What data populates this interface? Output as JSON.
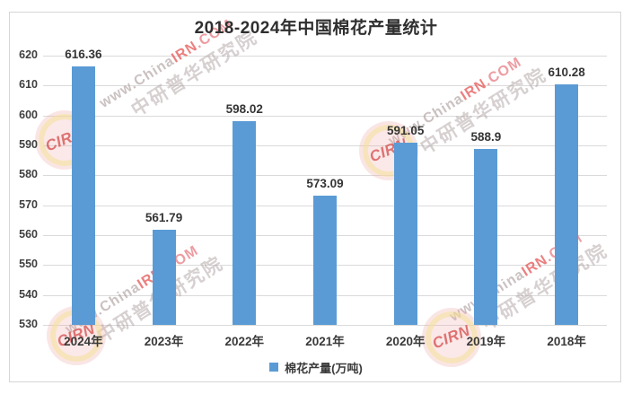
{
  "chart_data": {
    "type": "bar",
    "title": "2018-2024年中国棉花产量统计",
    "series_name": "棉花产量(万吨)",
    "categories": [
      "2024年",
      "2023年",
      "2022年",
      "2021年",
      "2020年",
      "2019年",
      "2018年"
    ],
    "values": [
      616.36,
      561.79,
      598.02,
      573.09,
      591.05,
      588.9,
      610.28
    ],
    "value_labels": [
      "616.36",
      "561.79",
      "598.02",
      "573.09",
      "591.05",
      "588.9",
      "610.28"
    ],
    "xlabel": "",
    "ylabel": "",
    "ylim": [
      530,
      620
    ],
    "yticks": [
      530,
      540,
      550,
      560,
      570,
      580,
      590,
      600,
      610,
      620
    ],
    "grid": true,
    "legend_position": "bottom",
    "bar_color": "#5B9BD5"
  },
  "watermark": {
    "logo_text": "CIRN",
    "url_prefix": "www.China",
    "url_highlight": "IRN",
    "url_suffix": ".COM",
    "org_text": "中研普华研究院"
  }
}
